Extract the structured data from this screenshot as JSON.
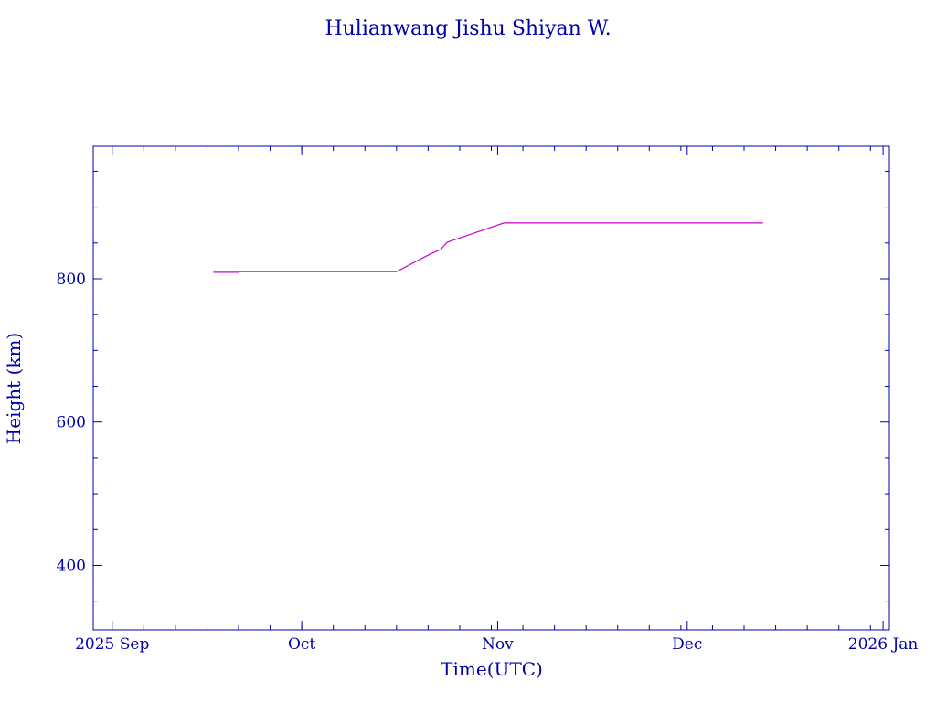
{
  "colors": {
    "axis": "#0000a8",
    "series": "#cc00cc",
    "background": "#ffffff"
  },
  "chart_data": {
    "type": "line",
    "title": "Hulianwang Jishu Shiyan W.",
    "xlabel": "Time(UTC)",
    "ylabel": "Height (km)",
    "xlim": [
      "2025-08-29",
      "2026-01-02"
    ],
    "ylim": [
      310,
      985
    ],
    "x_ticks": [
      {
        "date": "2025-09-01",
        "label": "2025 Sep"
      },
      {
        "date": "2025-10-01",
        "label": "Oct"
      },
      {
        "date": "2025-11-01",
        "label": "Nov"
      },
      {
        "date": "2025-12-01",
        "label": "Dec"
      },
      {
        "date": "2026-01-01",
        "label": "2026 Jan"
      }
    ],
    "y_ticks": [
      400,
      600,
      800
    ],
    "grid": false,
    "series": [
      {
        "x": [
          "2025-09-17",
          "2025-09-21",
          "2025-09-21T06:00",
          "2025-10-16",
          "2025-10-21",
          "2025-10-22T18:00",
          "2025-10-23",
          "2025-10-24",
          "2025-11-02",
          "2025-12-13"
        ],
        "y": [
          809,
          809,
          810,
          810,
          833,
          840,
          841,
          851,
          878,
          878
        ]
      }
    ]
  }
}
